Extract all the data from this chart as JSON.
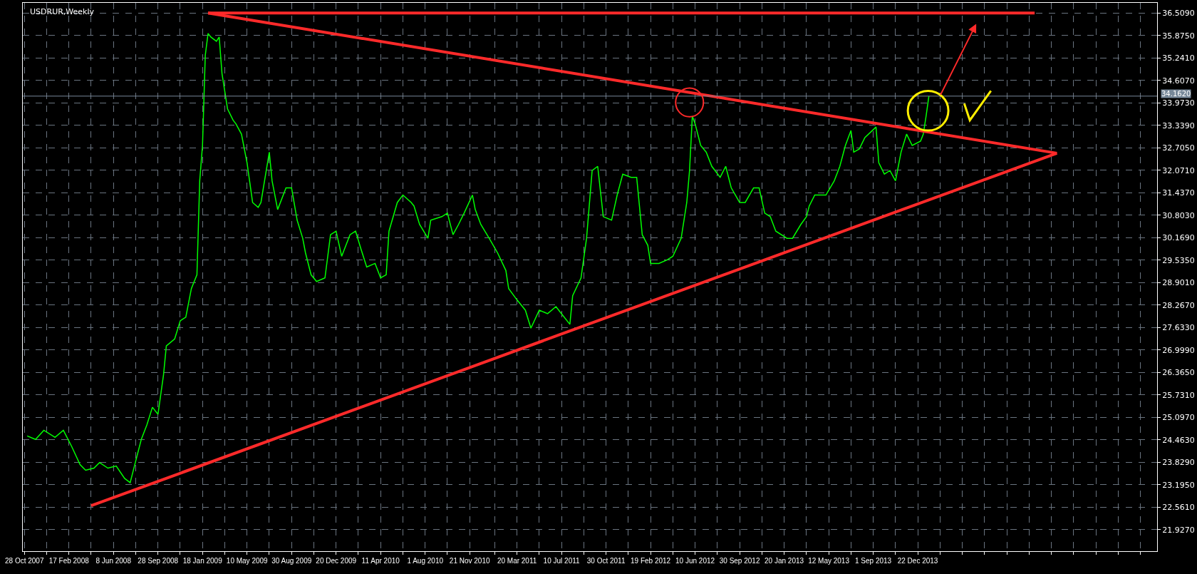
{
  "chart_data": {
    "type": "line",
    "title": "USDRUR,Weekly",
    "grid": true,
    "line_style": "solid",
    "marker": "none",
    "xlim": [
      "2007-10-24",
      "2015-08-16"
    ],
    "xticks": [
      {
        "value": "2007-10-28",
        "label": "28 Oct 2007"
      },
      {
        "value": "2007-12-23",
        "label": null
      },
      {
        "value": "2008-02-17",
        "label": "17 Feb 2008"
      },
      {
        "value": "2008-04-13",
        "label": null
      },
      {
        "value": "2008-06-08",
        "label": "8 Jun 2008"
      },
      {
        "value": "2008-08-03",
        "label": null
      },
      {
        "value": "2008-09-28",
        "label": "28 Sep 2008"
      },
      {
        "value": "2008-11-23",
        "label": null
      },
      {
        "value": "2009-01-18",
        "label": "18 Jan 2009"
      },
      {
        "value": "2009-03-15",
        "label": null
      },
      {
        "value": "2009-05-10",
        "label": "10 May 2009"
      },
      {
        "value": "2009-07-05",
        "label": null
      },
      {
        "value": "2009-08-30",
        "label": "30 Aug 2009"
      },
      {
        "value": "2009-10-25",
        "label": null
      },
      {
        "value": "2009-12-20",
        "label": "20 Dec 2009"
      },
      {
        "value": "2010-02-14",
        "label": null
      },
      {
        "value": "2010-04-11",
        "label": "11 Apr 2010"
      },
      {
        "value": "2010-06-06",
        "label": null
      },
      {
        "value": "2010-08-01",
        "label": "1 Aug 2010"
      },
      {
        "value": "2010-09-26",
        "label": null
      },
      {
        "value": "2010-11-21",
        "label": "21 Nov 2010"
      },
      {
        "value": "2011-01-23",
        "label": null
      },
      {
        "value": "2011-03-20",
        "label": "20 Mar 2011"
      },
      {
        "value": "2011-05-15",
        "label": null
      },
      {
        "value": "2011-07-10",
        "label": "10 Jul 2011"
      },
      {
        "value": "2011-09-04",
        "label": null
      },
      {
        "value": "2011-10-30",
        "label": "30 Oct 2011"
      },
      {
        "value": "2011-12-25",
        "label": null
      },
      {
        "value": "2012-02-19",
        "label": "19 Feb 2012"
      },
      {
        "value": "2012-04-15",
        "label": null
      },
      {
        "value": "2012-06-10",
        "label": "10 Jun 2012"
      },
      {
        "value": "2012-08-05",
        "label": null
      },
      {
        "value": "2012-09-30",
        "label": "30 Sep 2012"
      },
      {
        "value": "2012-11-25",
        "label": null
      },
      {
        "value": "2013-01-20",
        "label": "20 Jan 2013"
      },
      {
        "value": "2013-03-17",
        "label": null
      },
      {
        "value": "2013-05-12",
        "label": "12 May 2013"
      },
      {
        "value": "2013-07-07",
        "label": null
      },
      {
        "value": "2013-09-01",
        "label": "1 Sep 2013"
      },
      {
        "value": "2013-10-27",
        "label": null
      },
      {
        "value": "2013-12-22",
        "label": "22 Dec 2013"
      },
      {
        "value": "2014-02-16",
        "label": null
      },
      {
        "value": "2014-04-13",
        "label": null
      },
      {
        "value": "2014-06-08",
        "label": null
      },
      {
        "value": "2014-08-03",
        "label": null
      },
      {
        "value": "2014-09-28",
        "label": null
      },
      {
        "value": "2014-11-23",
        "label": null
      },
      {
        "value": "2015-01-18",
        "label": null
      },
      {
        "value": "2015-03-15",
        "label": null
      },
      {
        "value": "2015-05-10",
        "label": null
      },
      {
        "value": "2015-07-05",
        "label": null
      }
    ],
    "ylim": [
      21.316,
      36.795
    ],
    "yticks": [
      {
        "value": 36.509,
        "label": "36.5090"
      },
      {
        "value": 35.875,
        "label": "35.8750"
      },
      {
        "value": 35.241,
        "label": "35.2410"
      },
      {
        "value": 34.607,
        "label": "34.6070"
      },
      {
        "value": 33.973,
        "label": "33.9730"
      },
      {
        "value": 33.339,
        "label": "33.3390"
      },
      {
        "value": 32.705,
        "label": "32.7050"
      },
      {
        "value": 32.071,
        "label": "32.0710"
      },
      {
        "value": 31.437,
        "label": "31.4370"
      },
      {
        "value": 30.803,
        "label": "30.8030"
      },
      {
        "value": 30.169,
        "label": "30.1690"
      },
      {
        "value": 29.535,
        "label": "29.5350"
      },
      {
        "value": 28.901,
        "label": "28.9010"
      },
      {
        "value": 28.267,
        "label": "28.2670"
      },
      {
        "value": 27.633,
        "label": "27.6330"
      },
      {
        "value": 26.999,
        "label": "26.9990"
      },
      {
        "value": 26.365,
        "label": "26.3650"
      },
      {
        "value": 25.731,
        "label": "25.7310"
      },
      {
        "value": 25.097,
        "label": "25.0970"
      },
      {
        "value": 24.463,
        "label": "24.4630"
      },
      {
        "value": 23.829,
        "label": "23.8290"
      },
      {
        "value": 23.195,
        "label": "23.1950"
      },
      {
        "value": 22.561,
        "label": "22.5610"
      },
      {
        "value": 21.927,
        "label": "21.9270"
      }
    ],
    "ref_lines": [
      {
        "axis": "y",
        "value": 34.162,
        "label": "34.1620",
        "color": "#778899"
      }
    ],
    "series": [
      {
        "type": "line",
        "color": "#00ff00",
        "x": [
          "2007-11-04",
          "2007-11-25",
          "2007-12-16",
          "2008-01-13",
          "2008-02-03",
          "2008-02-24",
          "2008-03-16",
          "2008-03-30",
          "2008-04-20",
          "2008-05-04",
          "2008-05-25",
          "2008-06-15",
          "2008-07-06",
          "2008-07-20",
          "2008-08-03",
          "2008-08-17",
          "2008-08-31",
          "2008-09-14",
          "2008-09-28",
          "2008-10-12",
          "2008-10-19",
          "2008-11-09",
          "2008-11-23",
          "2008-12-07",
          "2008-12-21",
          "2009-01-04",
          "2009-01-11",
          "2009-01-18",
          "2009-01-25",
          "2009-02-01",
          "2009-02-08",
          "2009-02-22",
          "2009-03-01",
          "2009-03-08",
          "2009-03-22",
          "2009-04-05",
          "2009-04-12",
          "2009-04-26",
          "2009-05-10",
          "2009-05-24",
          "2009-06-07",
          "2009-06-14",
          "2009-07-05",
          "2009-07-12",
          "2009-07-26",
          "2009-08-16",
          "2009-08-30",
          "2009-09-13",
          "2009-09-27",
          "2009-10-04",
          "2009-10-18",
          "2009-11-01",
          "2009-11-22",
          "2009-12-06",
          "2009-12-20",
          "2010-01-03",
          "2010-01-24",
          "2010-02-07",
          "2010-02-21",
          "2010-03-07",
          "2010-03-28",
          "2010-04-11",
          "2010-04-25",
          "2010-05-02",
          "2010-05-23",
          "2010-06-06",
          "2010-06-27",
          "2010-07-04",
          "2010-07-18",
          "2010-08-08",
          "2010-08-15",
          "2010-09-12",
          "2010-09-26",
          "2010-10-10",
          "2010-10-24",
          "2010-11-07",
          "2010-11-28",
          "2010-12-05",
          "2010-12-19",
          "2011-01-09",
          "2011-01-30",
          "2011-02-20",
          "2011-02-27",
          "2011-03-20",
          "2011-04-10",
          "2011-04-24",
          "2011-05-15",
          "2011-06-05",
          "2011-06-26",
          "2011-07-10",
          "2011-07-31",
          "2011-08-07",
          "2011-08-28",
          "2011-09-11",
          "2011-09-25",
          "2011-10-09",
          "2011-10-23",
          "2011-11-13",
          "2011-11-27",
          "2011-12-11",
          "2012-01-01",
          "2012-01-15",
          "2012-01-29",
          "2012-02-12",
          "2012-02-19",
          "2012-03-11",
          "2012-04-01",
          "2012-04-15",
          "2012-05-06",
          "2012-05-20",
          "2012-05-27",
          "2012-06-03",
          "2012-06-10",
          "2012-06-24",
          "2012-07-08",
          "2012-07-22",
          "2012-08-12",
          "2012-08-26",
          "2012-09-09",
          "2012-09-30",
          "2012-10-14",
          "2012-11-04",
          "2012-11-18",
          "2012-12-02",
          "2012-12-16",
          "2012-12-30",
          "2013-01-27",
          "2013-02-10",
          "2013-03-03",
          "2013-03-17",
          "2013-03-24",
          "2013-04-07",
          "2013-05-05",
          "2013-05-26",
          "2013-06-09",
          "2013-06-23",
          "2013-07-07",
          "2013-07-14",
          "2013-07-28",
          "2013-08-11",
          "2013-09-08",
          "2013-09-15",
          "2013-09-29",
          "2013-10-13",
          "2013-10-27",
          "2013-11-10",
          "2013-11-24",
          "2013-12-08",
          "2013-12-29",
          "2014-01-05",
          "2014-01-12",
          "2014-01-19"
        ],
        "values": [
          24.57,
          24.47,
          24.73,
          24.53,
          24.73,
          24.27,
          23.76,
          23.6,
          23.66,
          23.82,
          23.66,
          23.72,
          23.37,
          23.25,
          23.86,
          24.47,
          24.88,
          25.38,
          25.18,
          26.3,
          27.11,
          27.31,
          27.82,
          27.92,
          28.73,
          29.12,
          31.77,
          32.77,
          35.32,
          35.93,
          35.83,
          35.71,
          35.83,
          34.8,
          33.8,
          33.48,
          33.38,
          33.09,
          32.28,
          31.16,
          31.02,
          31.16,
          32.58,
          31.77,
          30.96,
          31.57,
          31.57,
          30.66,
          30.15,
          29.74,
          29.12,
          28.93,
          29.03,
          30.25,
          30.35,
          29.64,
          30.25,
          30.35,
          29.83,
          29.34,
          29.44,
          29.03,
          29.12,
          30.35,
          31.16,
          31.37,
          31.16,
          31.06,
          30.54,
          30.15,
          30.66,
          30.76,
          30.86,
          30.25,
          30.54,
          30.86,
          31.37,
          30.96,
          30.54,
          30.15,
          29.74,
          29.24,
          28.73,
          28.41,
          28.12,
          27.61,
          28.12,
          28.02,
          28.22,
          28.02,
          27.72,
          28.53,
          29.03,
          30.15,
          32.06,
          32.18,
          30.76,
          30.66,
          31.37,
          31.96,
          31.87,
          31.87,
          30.25,
          29.95,
          29.44,
          29.44,
          29.54,
          29.64,
          30.15,
          31.16,
          32.06,
          33.6,
          33.38,
          32.77,
          32.58,
          32.18,
          31.87,
          32.18,
          31.57,
          31.16,
          31.16,
          31.57,
          31.57,
          30.86,
          30.76,
          30.35,
          30.15,
          30.15,
          30.54,
          30.76,
          31.06,
          31.37,
          31.37,
          31.77,
          32.18,
          32.77,
          33.19,
          32.58,
          32.67,
          32.99,
          33.29,
          32.28,
          31.96,
          32.06,
          31.77,
          32.58,
          33.09,
          32.77,
          32.89,
          33.09,
          33.6,
          34.16
        ]
      },
      {
        "type": "line",
        "color": "#ff2a2a",
        "x": [
          "2009-02-01",
          "2014-10-12"
        ],
        "values": [
          36.51,
          36.51
        ]
      },
      {
        "type": "line",
        "color": "#ff2a2a",
        "x": [
          "2009-02-01",
          "2014-12-07"
        ],
        "values": [
          36.51,
          32.55
        ]
      },
      {
        "type": "line",
        "color": "#ff2a2a",
        "x": [
          "2008-04-13",
          "2014-12-07"
        ],
        "values": [
          22.6,
          32.55
        ]
      }
    ]
  }
}
